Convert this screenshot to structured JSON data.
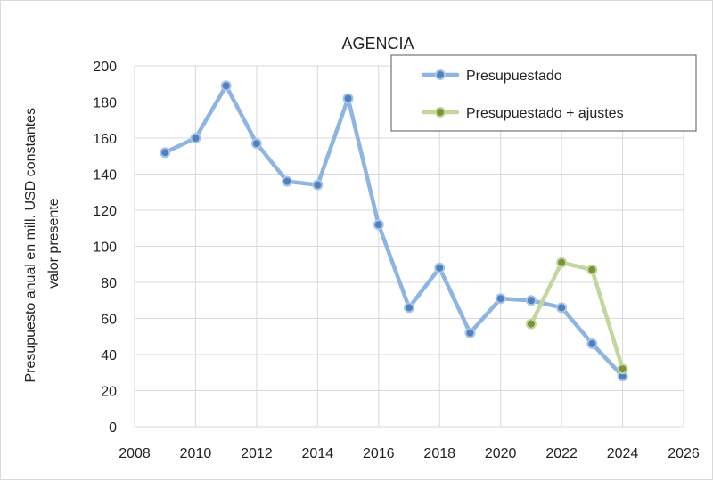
{
  "chart_data": {
    "type": "line",
    "title": "AGENCIA",
    "ylabel_lines": [
      "Presupuesto anual en mill. USD constantes",
      "valor presente"
    ],
    "xlabel": "",
    "xlim": [
      2008,
      2026
    ],
    "ylim": [
      0,
      200
    ],
    "x_ticks": [
      2008,
      2010,
      2012,
      2014,
      2016,
      2018,
      2020,
      2022,
      2024,
      2026
    ],
    "y_ticks": [
      0,
      20,
      40,
      60,
      80,
      100,
      120,
      140,
      160,
      180,
      200
    ],
    "grid": true,
    "legend_position": "top-right",
    "series": [
      {
        "name": "Presupuestado",
        "line_color": "#8db4e2",
        "marker_fill": "#4f81bd",
        "marker_edge": "#a9c4eb",
        "x": [
          2009,
          2010,
          2011,
          2012,
          2013,
          2014,
          2015,
          2016,
          2017,
          2018,
          2019,
          2020,
          2021,
          2022,
          2023,
          2024
        ],
        "values": [
          152,
          160,
          189,
          157,
          136,
          134,
          182,
          112,
          66,
          88,
          52,
          71,
          70,
          66,
          46,
          28
        ]
      },
      {
        "name": "Presupuestado + ajustes",
        "line_color": "#c3d69b",
        "marker_fill": "#77933c",
        "marker_edge": "#c3d69b",
        "x": [
          2021,
          2022,
          2023,
          2024
        ],
        "values": [
          57,
          91,
          87,
          32
        ]
      }
    ]
  }
}
